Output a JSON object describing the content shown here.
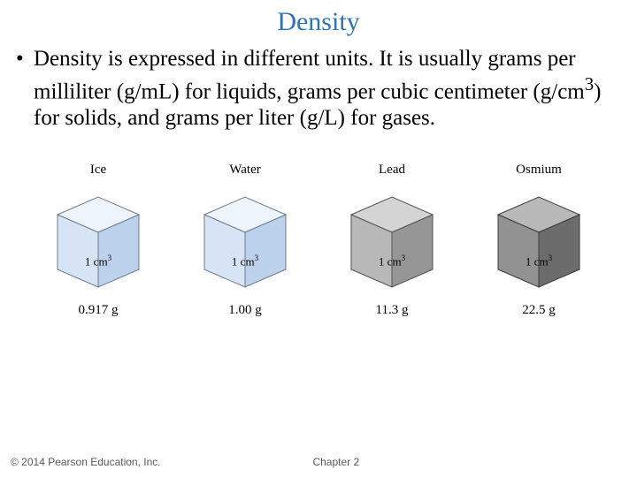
{
  "title": {
    "text": "Density",
    "color": "#2e74b5"
  },
  "bullet": {
    "marker": "•",
    "text_html": "Density is expressed in different units.  It is usually grams per milliliter (g/mL) for liquids, grams per cubic centimeter (g/cm<sup>3</sup>) for solids, and grams per liter (g/L) for gases."
  },
  "cubes": [
    {
      "name": "Ice",
      "volume_html": "1 cm<span class=\"sup\">3</span>",
      "mass": "0.917 g",
      "fill_light": "#eef4fb",
      "fill_mid": "#d6e4f5",
      "fill_dark": "#bcd1eb",
      "stroke": "#6e7b8a"
    },
    {
      "name": "Water",
      "volume_html": "1 cm<span class=\"sup\">3</span>",
      "mass": "1.00 g",
      "fill_light": "#eef4fb",
      "fill_mid": "#d6e4f5",
      "fill_dark": "#bcd1eb",
      "stroke": "#6e7b8a"
    },
    {
      "name": "Lead",
      "volume_html": "1 cm<span class=\"sup\">3</span>",
      "mass": "11.3 g",
      "fill_light": "#d4d4d4",
      "fill_mid": "#b8b8b8",
      "fill_dark": "#969696",
      "stroke": "#525252"
    },
    {
      "name": "Osmium",
      "volume_html": "1 cm<span class=\"sup\">3</span>",
      "mass": "22.5 g",
      "fill_light": "#b9b9b9",
      "fill_mid": "#929292",
      "fill_dark": "#6c6c6c",
      "stroke": "#3a3a3a"
    }
  ],
  "footer": {
    "copyright": "© 2014 Pearson Education, Inc.",
    "chapter": "Chapter 2"
  }
}
